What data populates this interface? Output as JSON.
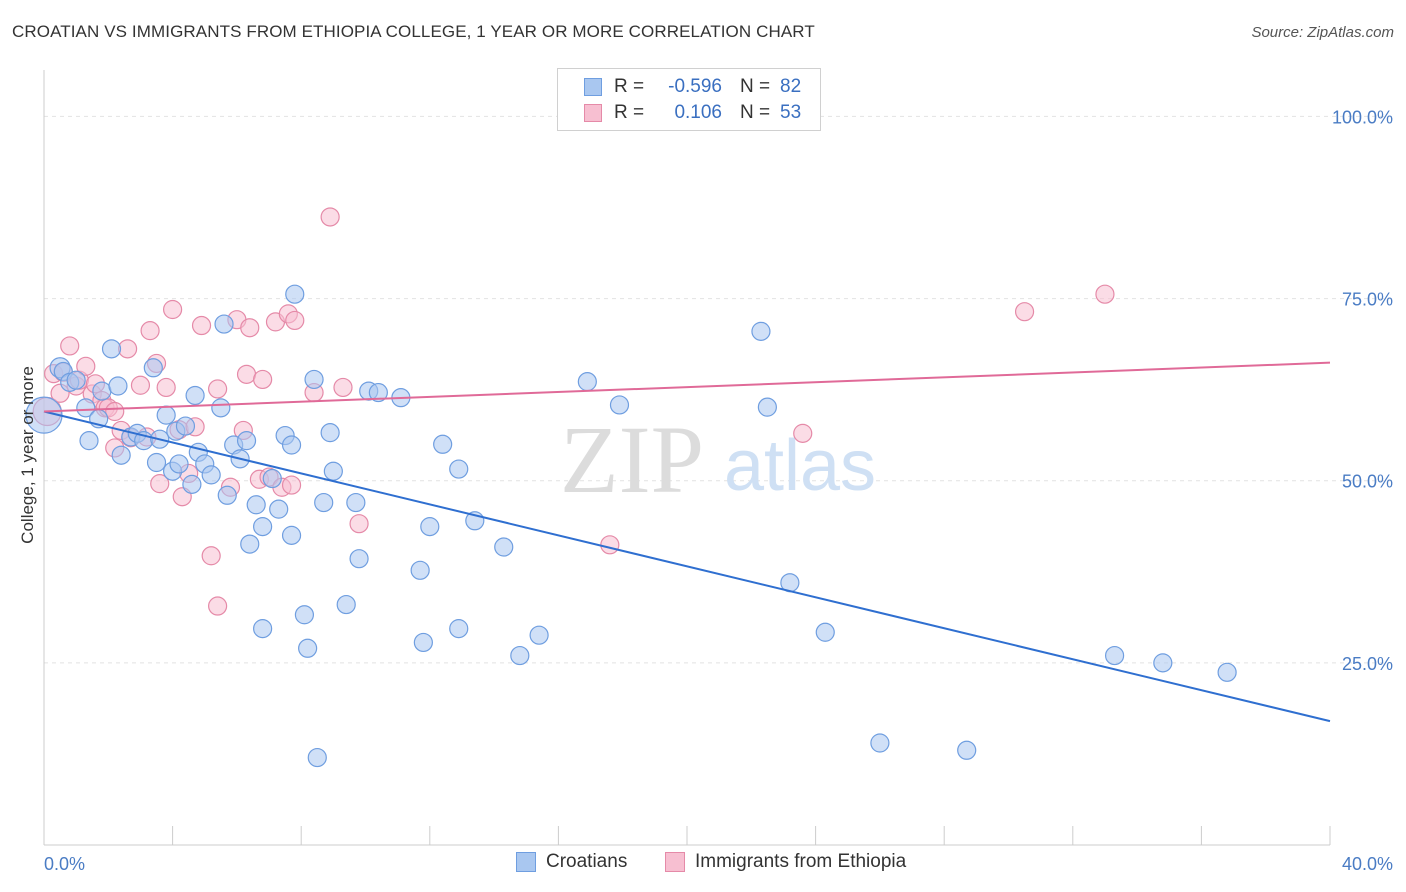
{
  "title": "CROATIAN VS IMMIGRANTS FROM ETHIOPIA COLLEGE, 1 YEAR OR MORE CORRELATION CHART",
  "source": "Source: ZipAtlas.com",
  "watermark": {
    "zip": "ZIP",
    "atlas": "atlas"
  },
  "legend": {
    "rows": [
      {
        "r_label": "R =",
        "r_value": "-0.596",
        "n_label": "N =",
        "n_value": "82",
        "color": "#a9c7f0",
        "border": "#6f9ee0"
      },
      {
        "r_label": "R =",
        "r_value": "0.106",
        "n_label": "N =",
        "n_value": "53",
        "color": "#f7bfd1",
        "border": "#e58aa8"
      }
    ]
  },
  "bottom_legend": [
    {
      "label": "Croatians",
      "color": "#a9c7f0",
      "border": "#6f9ee0"
    },
    {
      "label": "Immigrants from Ethiopia",
      "color": "#f7bfd1",
      "border": "#e58aa8"
    }
  ],
  "chart_data": {
    "type": "scatter",
    "xlabel": "",
    "ylabel": "College, 1 year or more",
    "xlim": [
      0,
      40
    ],
    "ylim": [
      0,
      105
    ],
    "x_tick_labels": [
      {
        "value": 0,
        "label": "0.0%"
      },
      {
        "value": 40,
        "label": "40.0%"
      }
    ],
    "y_tick_labels": [
      {
        "value": 100,
        "label": "100.0%"
      },
      {
        "value": 75,
        "label": "75.0%"
      },
      {
        "value": 50,
        "label": "50.0%"
      },
      {
        "value": 25,
        "label": "25.0%"
      }
    ],
    "grid": true,
    "series": [
      {
        "name": "Croatians",
        "color": "#a9c7f0",
        "border": "#6f9ee0",
        "trend": {
          "x": [
            0,
            40
          ],
          "y": [
            59.5,
            17.0
          ],
          "color": "#2f6fd0"
        },
        "points": [
          [
            0.0,
            59.0,
            18
          ],
          [
            0.5,
            65.5,
            10
          ],
          [
            0.6,
            65.0,
            9
          ],
          [
            0.8,
            63.5,
            9
          ],
          [
            1.0,
            63.8,
            9
          ],
          [
            1.3,
            60.0,
            9
          ],
          [
            1.4,
            55.5,
            9
          ],
          [
            1.7,
            58.5,
            9
          ],
          [
            1.8,
            62.3,
            9
          ],
          [
            2.1,
            68.1,
            9
          ],
          [
            2.3,
            63.0,
            9
          ],
          [
            2.4,
            53.5,
            9
          ],
          [
            2.7,
            56.0,
            9
          ],
          [
            2.9,
            56.5,
            9
          ],
          [
            3.1,
            55.5,
            9
          ],
          [
            3.4,
            65.5,
            9
          ],
          [
            3.5,
            52.5,
            9
          ],
          [
            3.6,
            55.7,
            9
          ],
          [
            3.8,
            59.0,
            9
          ],
          [
            4.0,
            51.3,
            9
          ],
          [
            4.1,
            56.8,
            9
          ],
          [
            4.2,
            52.3,
            9
          ],
          [
            4.4,
            57.5,
            9
          ],
          [
            4.6,
            49.5,
            9
          ],
          [
            4.7,
            61.7,
            9
          ],
          [
            4.8,
            53.9,
            9
          ],
          [
            5.0,
            52.3,
            9
          ],
          [
            5.2,
            50.8,
            9
          ],
          [
            5.5,
            60.0,
            9
          ],
          [
            5.6,
            71.5,
            9
          ],
          [
            5.7,
            48.0,
            9
          ],
          [
            5.9,
            54.9,
            9
          ],
          [
            6.1,
            53.0,
            9
          ],
          [
            6.3,
            55.5,
            9
          ],
          [
            6.4,
            41.3,
            9
          ],
          [
            6.6,
            46.7,
            9
          ],
          [
            6.8,
            43.7,
            9
          ],
          [
            6.8,
            29.7,
            9
          ],
          [
            7.1,
            50.3,
            9
          ],
          [
            7.3,
            46.1,
            9
          ],
          [
            7.5,
            56.2,
            9
          ],
          [
            7.7,
            42.5,
            9
          ],
          [
            7.7,
            54.9,
            9
          ],
          [
            7.8,
            75.6,
            9
          ],
          [
            8.1,
            31.6,
            9
          ],
          [
            8.2,
            27.0,
            9
          ],
          [
            8.4,
            63.9,
            9
          ],
          [
            8.5,
            12.0,
            9
          ],
          [
            8.7,
            47.0,
            9
          ],
          [
            8.9,
            56.6,
            9
          ],
          [
            9.0,
            51.3,
            9
          ],
          [
            9.4,
            33.0,
            9
          ],
          [
            9.7,
            47.0,
            9
          ],
          [
            9.8,
            39.3,
            9
          ],
          [
            10.1,
            62.3,
            9
          ],
          [
            10.4,
            62.1,
            9
          ],
          [
            11.1,
            61.4,
            9
          ],
          [
            11.7,
            37.7,
            9
          ],
          [
            11.8,
            27.8,
            9
          ],
          [
            12.0,
            43.7,
            9
          ],
          [
            12.4,
            55.0,
            9
          ],
          [
            12.9,
            51.6,
            9
          ],
          [
            12.9,
            29.7,
            9
          ],
          [
            13.4,
            44.5,
            9
          ],
          [
            14.3,
            40.9,
            9
          ],
          [
            14.8,
            26.0,
            9
          ],
          [
            15.4,
            28.8,
            9
          ],
          [
            16.9,
            63.6,
            9
          ],
          [
            17.9,
            60.4,
            9
          ],
          [
            22.3,
            70.5,
            9
          ],
          [
            22.5,
            60.1,
            9
          ],
          [
            23.2,
            36.0,
            9
          ],
          [
            24.3,
            29.2,
            9
          ],
          [
            26.0,
            14.0,
            9
          ],
          [
            28.7,
            13.0,
            9
          ],
          [
            33.3,
            26.0,
            9
          ],
          [
            34.8,
            25.0,
            9
          ],
          [
            36.8,
            23.7,
            9
          ]
        ]
      },
      {
        "name": "Immigrants from Ethiopia",
        "color": "#f7bfd1",
        "border": "#e58aa8",
        "trend": {
          "x": [
            0,
            40
          ],
          "y": [
            59.5,
            66.2
          ],
          "color": "#e06a98"
        },
        "points": [
          [
            0.1,
            59.5,
            14
          ],
          [
            0.3,
            64.7,
            9
          ],
          [
            0.5,
            62.0,
            9
          ],
          [
            0.6,
            64.9,
            9
          ],
          [
            0.8,
            68.5,
            9
          ],
          [
            1.0,
            63.0,
            9
          ],
          [
            1.1,
            63.8,
            9
          ],
          [
            1.3,
            65.7,
            9
          ],
          [
            1.5,
            61.9,
            9
          ],
          [
            1.6,
            63.3,
            9
          ],
          [
            1.8,
            61.0,
            9
          ],
          [
            1.9,
            60.0,
            9
          ],
          [
            2.0,
            60.0,
            9
          ],
          [
            2.2,
            59.5,
            9
          ],
          [
            2.2,
            54.5,
            9
          ],
          [
            2.4,
            56.9,
            9
          ],
          [
            2.6,
            68.1,
            9
          ],
          [
            2.7,
            55.9,
            9
          ],
          [
            3.0,
            63.1,
            9
          ],
          [
            3.2,
            56.0,
            9
          ],
          [
            3.3,
            70.6,
            9
          ],
          [
            3.5,
            66.1,
            9
          ],
          [
            3.6,
            49.6,
            9
          ],
          [
            3.8,
            62.8,
            9
          ],
          [
            4.0,
            73.5,
            9
          ],
          [
            4.2,
            57.0,
            9
          ],
          [
            4.3,
            47.8,
            9
          ],
          [
            4.5,
            51.0,
            9
          ],
          [
            4.7,
            57.4,
            9
          ],
          [
            4.9,
            71.3,
            9
          ],
          [
            5.2,
            39.7,
            9
          ],
          [
            5.4,
            32.8,
            9
          ],
          [
            5.4,
            62.6,
            9
          ],
          [
            5.8,
            49.1,
            9
          ],
          [
            6.0,
            72.1,
            9
          ],
          [
            6.2,
            56.9,
            9
          ],
          [
            6.3,
            64.6,
            9
          ],
          [
            6.4,
            71.0,
            9
          ],
          [
            6.7,
            50.2,
            9
          ],
          [
            6.8,
            63.9,
            9
          ],
          [
            7.0,
            50.5,
            9
          ],
          [
            7.2,
            71.8,
            9
          ],
          [
            7.4,
            49.1,
            9
          ],
          [
            7.6,
            72.9,
            9
          ],
          [
            7.7,
            49.4,
            9
          ],
          [
            7.8,
            72.0,
            9
          ],
          [
            8.4,
            62.1,
            9
          ],
          [
            8.9,
            86.2,
            9
          ],
          [
            9.3,
            62.8,
            9
          ],
          [
            9.8,
            44.1,
            9
          ],
          [
            17.6,
            41.2,
            9
          ],
          [
            23.6,
            56.5,
            9
          ],
          [
            30.5,
            73.2,
            9
          ],
          [
            33.0,
            75.6,
            9
          ]
        ]
      }
    ]
  }
}
